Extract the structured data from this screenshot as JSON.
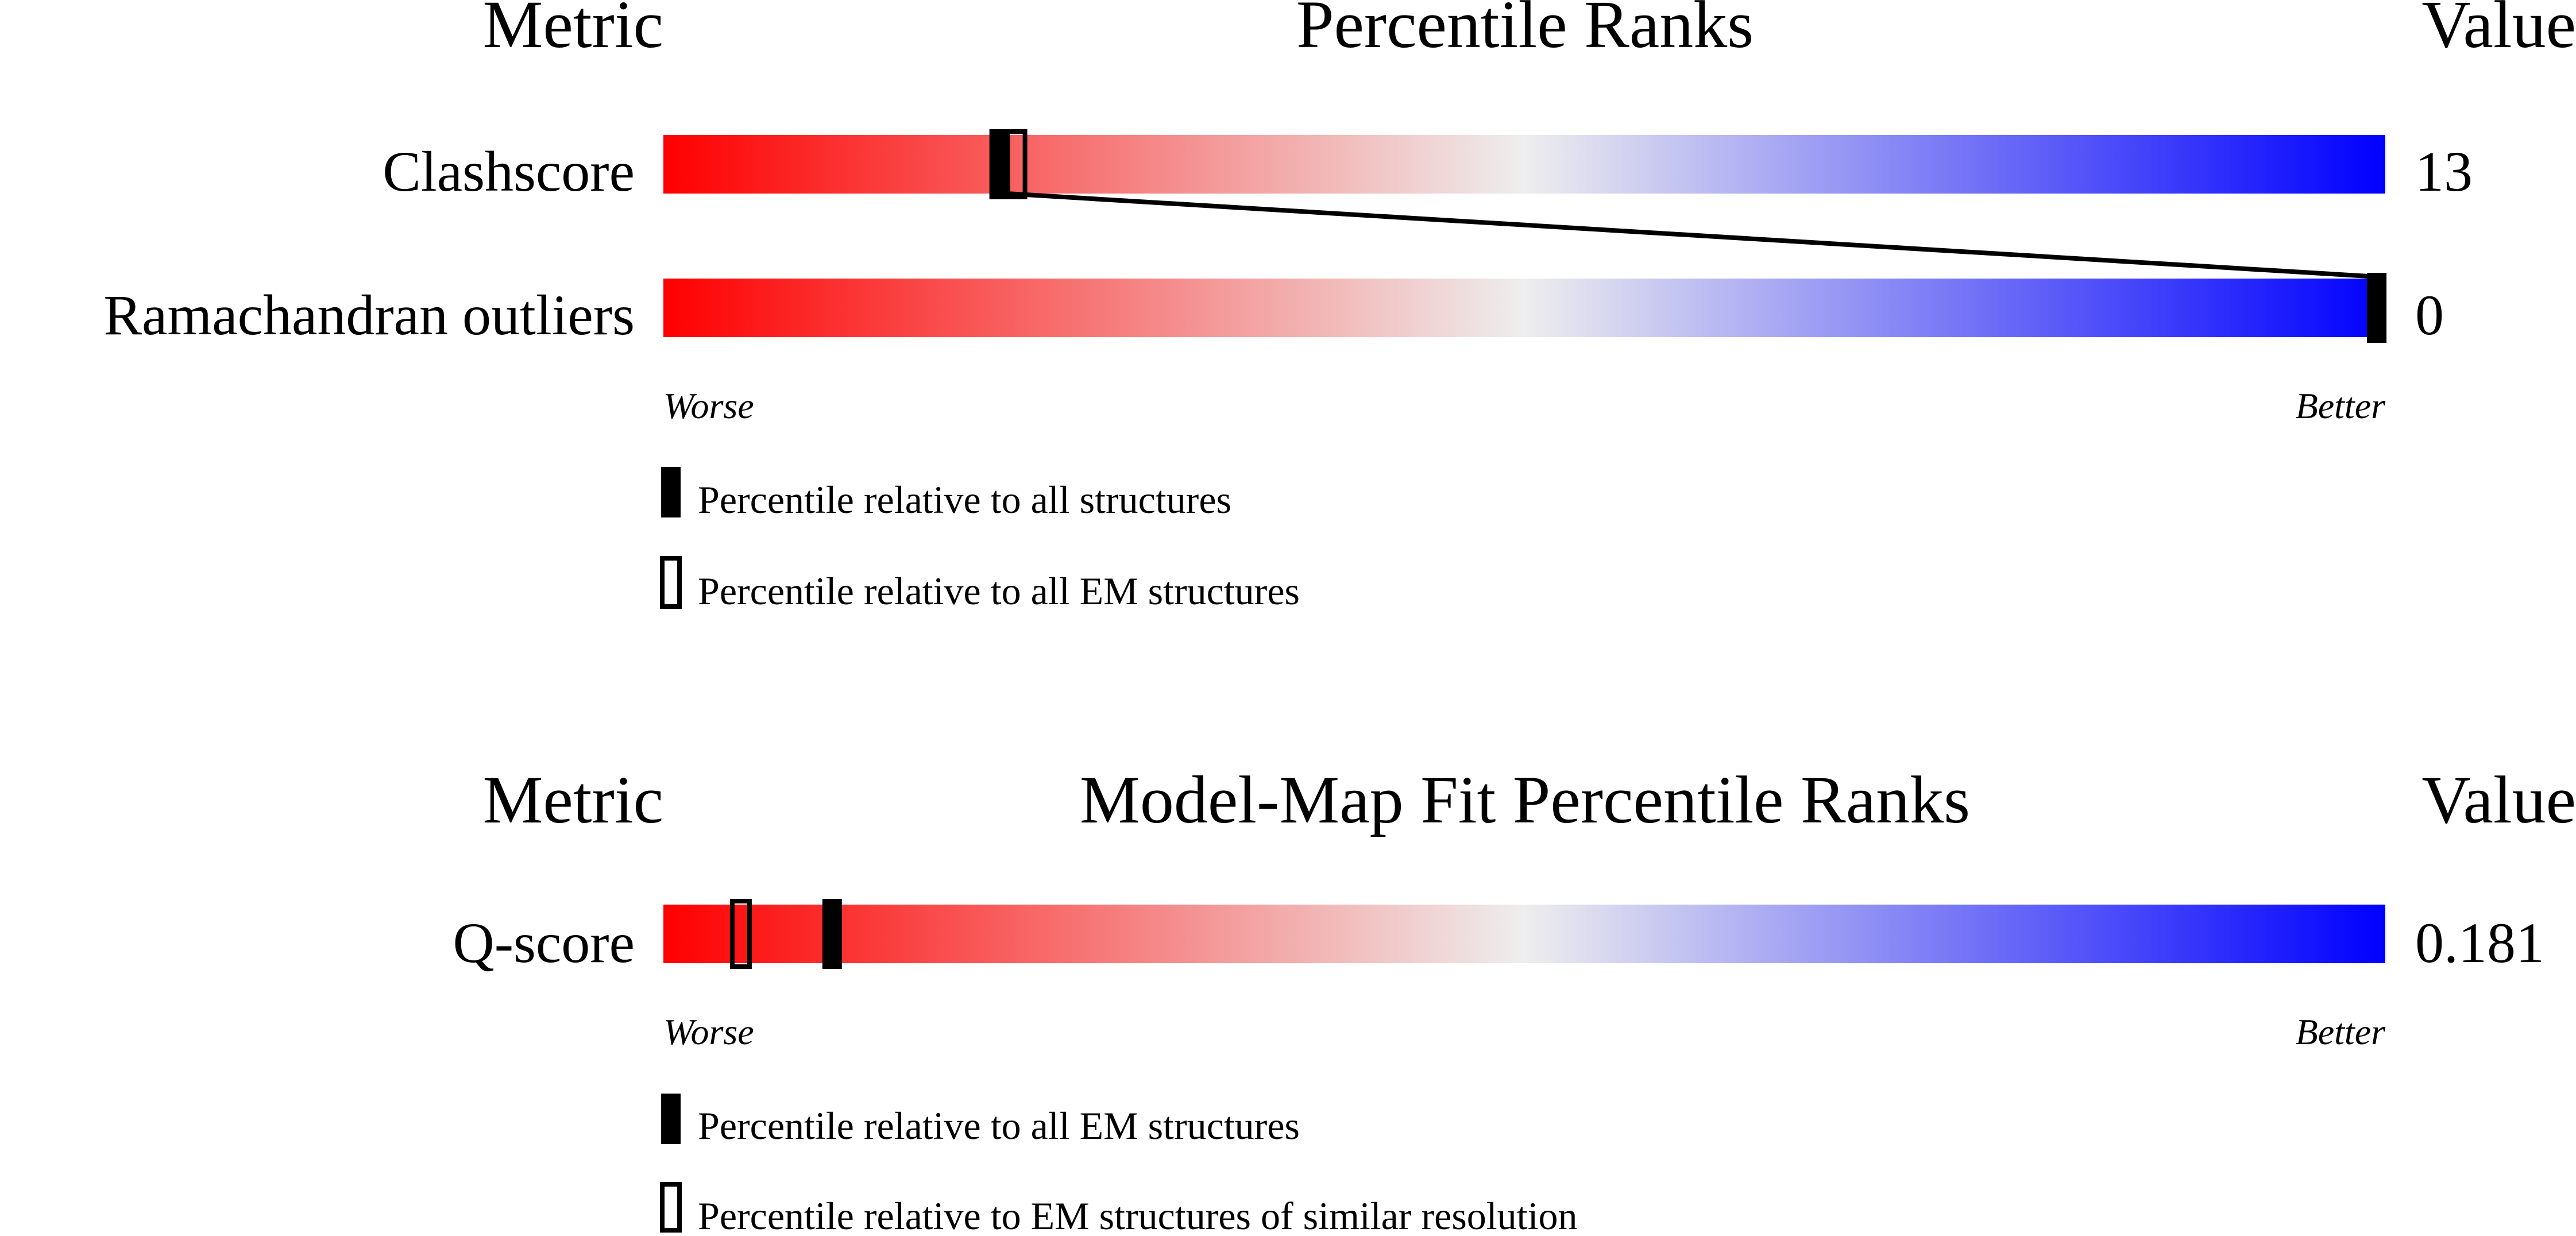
{
  "chart_data": [
    {
      "type": "percentile-rank",
      "title": "Percentile Ranks",
      "metric_header": "Metric",
      "value_header": "Value",
      "scale_left": "Worse",
      "scale_right": "Better",
      "scale_range": [
        0,
        100
      ],
      "rows": [
        {
          "name": "Clashscore",
          "value": "13",
          "percentile_all": 19.5,
          "percentile_em": 20.5
        },
        {
          "name": "Ramachandran outliers",
          "value": "0",
          "percentile_all": 99.5,
          "percentile_em": 99.5
        }
      ],
      "legend": [
        {
          "marker": "filled",
          "label": "Percentile relative to all structures"
        },
        {
          "marker": "open",
          "label": "Percentile relative to all EM structures"
        }
      ]
    },
    {
      "type": "percentile-rank",
      "title": "Model-Map Fit Percentile Ranks",
      "metric_header": "Metric",
      "value_header": "Value",
      "scale_left": "Worse",
      "scale_right": "Better",
      "scale_range": [
        0,
        100
      ],
      "rows": [
        {
          "name": "Q-score",
          "value": "0.181",
          "percentile_all": 9.8,
          "percentile_em": 4.5
        }
      ],
      "legend": [
        {
          "marker": "filled",
          "label": "Percentile relative to all EM structures"
        },
        {
          "marker": "open",
          "label": "Percentile relative to EM structures of similar resolution"
        }
      ]
    }
  ],
  "colors": {
    "worse": "#ff0000",
    "middle": "#eeeeee",
    "better": "#0000ff",
    "marker": "#000000"
  }
}
